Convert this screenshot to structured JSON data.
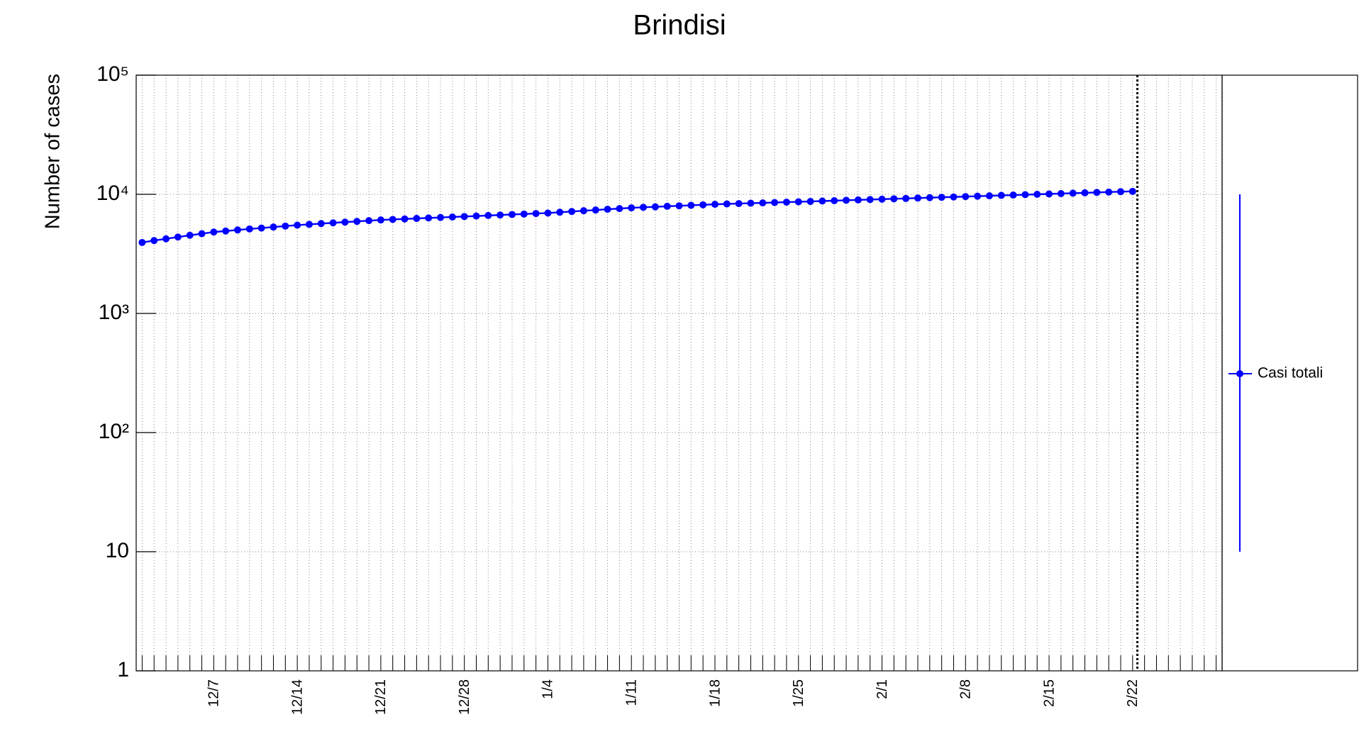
{
  "chart_data": {
    "type": "line",
    "title": "Brindisi",
    "y_label": "Number of cases",
    "categories": [
      null,
      null,
      null,
      null,
      null,
      null,
      "12/7",
      null,
      null,
      null,
      null,
      null,
      null,
      "12/14",
      null,
      null,
      null,
      null,
      null,
      null,
      "12/21",
      null,
      null,
      null,
      null,
      null,
      null,
      "12/28",
      null,
      null,
      null,
      null,
      null,
      null,
      "1/4",
      null,
      null,
      null,
      null,
      null,
      null,
      "1/11",
      null,
      null,
      null,
      null,
      null,
      null,
      "1/18",
      null,
      null,
      null,
      null,
      null,
      null,
      "1/25",
      null,
      null,
      null,
      null,
      null,
      null,
      "2/1",
      null,
      null,
      null,
      null,
      null,
      null,
      "2/8",
      null,
      null,
      null,
      null,
      null,
      null,
      "2/15",
      null,
      null,
      null,
      null,
      null,
      null,
      "2/22",
      null,
      null,
      null,
      null,
      null,
      null,
      null
    ],
    "series": [
      {
        "name": "Casi totali",
        "color": "#0000ff",
        "values": [
          3940,
          4090,
          4230,
          4380,
          4530,
          4670,
          4820,
          4920,
          5020,
          5120,
          5210,
          5310,
          5410,
          5510,
          5590,
          5680,
          5760,
          5840,
          5920,
          6010,
          6090,
          6150,
          6210,
          6270,
          6330,
          6390,
          6450,
          6510,
          6570,
          6640,
          6700,
          6770,
          6830,
          6900,
          6960,
          7070,
          7170,
          7280,
          7380,
          7490,
          7590,
          7700,
          7780,
          7850,
          7930,
          8010,
          8080,
          8160,
          8240,
          8300,
          8360,
          8420,
          8470,
          8530,
          8590,
          8650,
          8710,
          8780,
          8840,
          8910,
          8970,
          9040,
          9100,
          9170,
          9230,
          9300,
          9370,
          9440,
          9500,
          9570,
          9640,
          9710,
          9790,
          9860,
          9930,
          10000,
          10070,
          10140,
          10220,
          10290,
          10370,
          10440,
          10520,
          10590,
          null,
          null,
          null,
          null,
          null,
          null,
          null
        ]
      }
    ],
    "ylim": [
      1,
      100000
    ],
    "log_y": true,
    "yticks": [
      1,
      10,
      {
        "value": 100,
        "label": "10²"
      },
      {
        "value": 1000,
        "label": "10³"
      },
      {
        "value": 10000,
        "label": "10⁴"
      },
      {
        "value": 100000,
        "label": "10⁵"
      }
    ],
    "grid": true,
    "legend": "right"
  }
}
